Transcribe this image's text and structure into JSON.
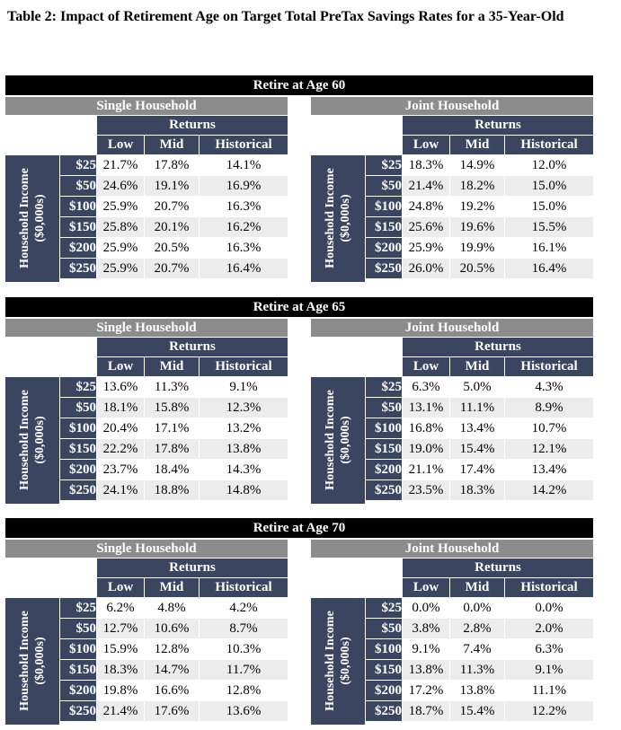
{
  "title": "Table 2: Impact of Retirement Age on Target Total PreTax Savings Rates for a 35-Year-Old",
  "returns_label": "Returns",
  "columns": [
    "Low",
    "Mid",
    "Historical"
  ],
  "income_label_line1": "Household Income",
  "income_label_line2": "($0,000s)",
  "income_levels": [
    "$25",
    "$50",
    "$100",
    "$150",
    "$200",
    "$250"
  ],
  "sections": [
    {
      "header": "Retire at Age 60",
      "households": [
        {
          "title": "Single Household",
          "rows": [
            [
              "21.7%",
              "17.8%",
              "14.1%"
            ],
            [
              "24.6%",
              "19.1%",
              "16.9%"
            ],
            [
              "25.9%",
              "20.7%",
              "16.3%"
            ],
            [
              "25.8%",
              "20.1%",
              "16.2%"
            ],
            [
              "25.9%",
              "20.5%",
              "16.3%"
            ],
            [
              "25.9%",
              "20.7%",
              "16.4%"
            ]
          ]
        },
        {
          "title": "Joint Household",
          "rows": [
            [
              "18.3%",
              "14.9%",
              "12.0%"
            ],
            [
              "21.4%",
              "18.2%",
              "15.0%"
            ],
            [
              "24.8%",
              "19.2%",
              "15.0%"
            ],
            [
              "25.6%",
              "19.6%",
              "15.5%"
            ],
            [
              "25.9%",
              "19.9%",
              "16.1%"
            ],
            [
              "26.0%",
              "20.5%",
              "16.4%"
            ]
          ]
        }
      ]
    },
    {
      "header": "Retire at Age 65",
      "households": [
        {
          "title": "Single Household",
          "rows": [
            [
              "13.6%",
              "11.3%",
              "9.1%"
            ],
            [
              "18.1%",
              "15.8%",
              "12.3%"
            ],
            [
              "20.4%",
              "17.1%",
              "13.2%"
            ],
            [
              "22.2%",
              "17.8%",
              "13.8%"
            ],
            [
              "23.7%",
              "18.4%",
              "14.3%"
            ],
            [
              "24.1%",
              "18.8%",
              "14.8%"
            ]
          ]
        },
        {
          "title": "Joint Household",
          "rows": [
            [
              "6.3%",
              "5.0%",
              "4.3%"
            ],
            [
              "13.1%",
              "11.1%",
              "8.9%"
            ],
            [
              "16.8%",
              "13.4%",
              "10.7%"
            ],
            [
              "19.0%",
              "15.4%",
              "12.1%"
            ],
            [
              "21.1%",
              "17.4%",
              "13.4%"
            ],
            [
              "23.5%",
              "18.3%",
              "14.2%"
            ]
          ]
        }
      ]
    },
    {
      "header": "Retire at Age 70",
      "households": [
        {
          "title": "Single Household",
          "rows": [
            [
              "6.2%",
              "4.8%",
              "4.2%"
            ],
            [
              "12.7%",
              "10.6%",
              "8.7%"
            ],
            [
              "15.9%",
              "12.8%",
              "10.3%"
            ],
            [
              "18.3%",
              "14.7%",
              "11.7%"
            ],
            [
              "19.8%",
              "16.6%",
              "12.8%"
            ],
            [
              "21.4%",
              "17.6%",
              "13.6%"
            ]
          ]
        },
        {
          "title": "Joint Household",
          "rows": [
            [
              "0.0%",
              "0.0%",
              "0.0%"
            ],
            [
              "3.8%",
              "2.8%",
              "2.0%"
            ],
            [
              "9.1%",
              "7.4%",
              "6.3%"
            ],
            [
              "13.8%",
              "11.3%",
              "9.1%"
            ],
            [
              "17.2%",
              "13.8%",
              "11.1%"
            ],
            [
              "18.7%",
              "15.4%",
              "12.2%"
            ]
          ]
        }
      ]
    }
  ],
  "colors": {
    "header_bg": "#000000",
    "household_title_bg": "#8c8c8c",
    "navy": "#3a4660",
    "row_shade": "#ececec"
  }
}
